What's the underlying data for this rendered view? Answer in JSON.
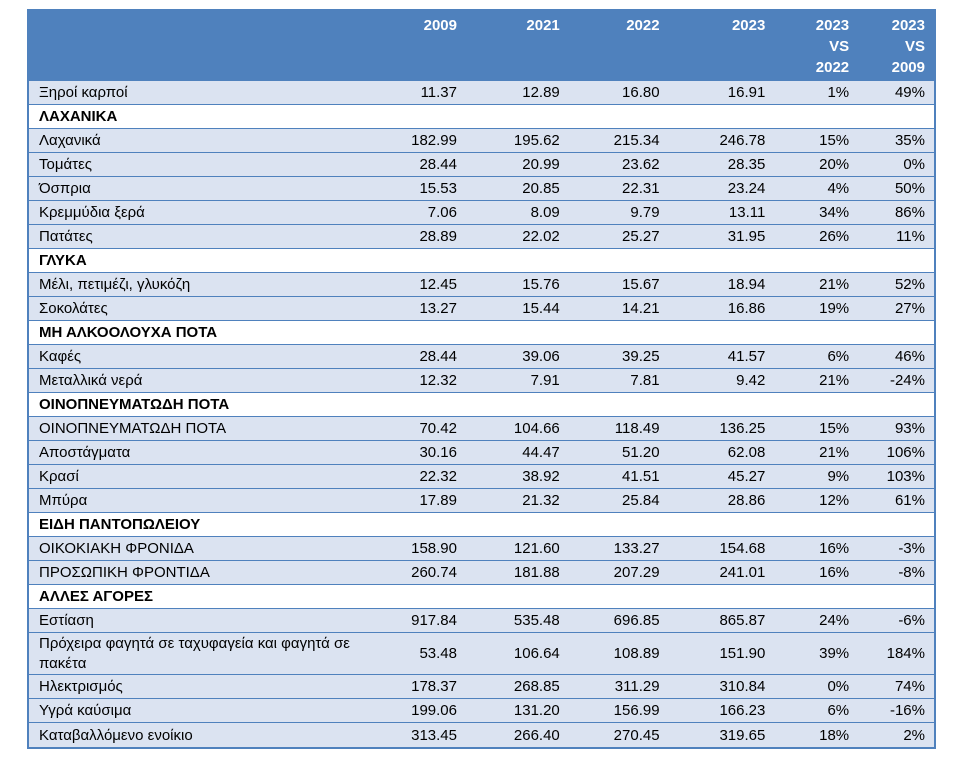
{
  "header": {
    "label": "",
    "cols": [
      "2009",
      "2021",
      "2022",
      "2023",
      "2023\nVS\n2022",
      "2023\nVS\n2009"
    ]
  },
  "rows": [
    {
      "type": "data",
      "label": "Ξηροί καρποί",
      "v": [
        "11.37",
        "12.89",
        "16.80",
        "16.91",
        "1%",
        "49%"
      ]
    },
    {
      "type": "cat",
      "label": "ΛΑΧΑΝΙΚΑ"
    },
    {
      "type": "data",
      "label": "Λαχανικά",
      "v": [
        "182.99",
        "195.62",
        "215.34",
        "246.78",
        "15%",
        "35%"
      ]
    },
    {
      "type": "data",
      "label": "Τομάτες",
      "v": [
        "28.44",
        "20.99",
        "23.62",
        "28.35",
        "20%",
        "0%"
      ]
    },
    {
      "type": "data",
      "label": "Όσπρια",
      "v": [
        "15.53",
        "20.85",
        "22.31",
        "23.24",
        "4%",
        "50%"
      ]
    },
    {
      "type": "data",
      "label": "Κρεμμύδια ξερά",
      "v": [
        "7.06",
        "8.09",
        "9.79",
        "13.11",
        "34%",
        "86%"
      ]
    },
    {
      "type": "data",
      "label": "Πατάτες",
      "v": [
        "28.89",
        "22.02",
        "25.27",
        "31.95",
        "26%",
        "11%"
      ]
    },
    {
      "type": "cat",
      "label": "ΓΛΥΚΑ"
    },
    {
      "type": "data",
      "label": "Μέλι, πετιμέζι, γλυκόζη",
      "v": [
        "12.45",
        "15.76",
        "15.67",
        "18.94",
        "21%",
        "52%"
      ]
    },
    {
      "type": "data",
      "label": "Σοκολάτες",
      "v": [
        "13.27",
        "15.44",
        "14.21",
        "16.86",
        "19%",
        "27%"
      ]
    },
    {
      "type": "cat",
      "label": "ΜΗ ΑΛΚΟΟΛΟΥΧΑ ΠΟΤΑ"
    },
    {
      "type": "data",
      "label": "Καφές",
      "v": [
        "28.44",
        "39.06",
        "39.25",
        "41.57",
        "6%",
        "46%"
      ]
    },
    {
      "type": "data",
      "label": "Μεταλλικά νερά",
      "v": [
        "12.32",
        "7.91",
        "7.81",
        "9.42",
        "21%",
        "-24%"
      ]
    },
    {
      "type": "cat",
      "label": "ΟΙΝΟΠΝΕΥΜΑΤΩΔΗ ΠΟΤΑ"
    },
    {
      "type": "data",
      "label": "ΟΙΝΟΠΝΕΥΜΑΤΩΔΗ ΠΟΤΑ",
      "v": [
        "70.42",
        "104.66",
        "118.49",
        "136.25",
        "15%",
        "93%"
      ]
    },
    {
      "type": "data",
      "label": "Αποστάγματα",
      "v": [
        "30.16",
        "44.47",
        "51.20",
        "62.08",
        "21%",
        "106%"
      ]
    },
    {
      "type": "data",
      "label": "Κρασί",
      "v": [
        "22.32",
        "38.92",
        "41.51",
        "45.27",
        "9%",
        "103%"
      ]
    },
    {
      "type": "data",
      "label": "Μπύρα",
      "v": [
        "17.89",
        "21.32",
        "25.84",
        "28.86",
        "12%",
        "61%"
      ]
    },
    {
      "type": "cat",
      "label": "ΕΙΔΗ ΠΑΝΤΟΠΩΛΕΙΟΥ"
    },
    {
      "type": "data",
      "label": "ΟΙΚΟΚΙΑΚΗ ΦΡΟΝΙΔΑ",
      "v": [
        "158.90",
        "121.60",
        "133.27",
        "154.68",
        "16%",
        "-3%"
      ]
    },
    {
      "type": "data",
      "label": "ΠΡΟΣΩΠΙΚΗ ΦΡΟΝΤΙΔΑ",
      "v": [
        "260.74",
        "181.88",
        "207.29",
        "241.01",
        "16%",
        "-8%"
      ]
    },
    {
      "type": "cat",
      "label": "ΑΛΛΕΣ ΑΓΟΡΕΣ"
    },
    {
      "type": "data",
      "label": "Εστίαση",
      "v": [
        "917.84",
        "535.48",
        "696.85",
        "865.87",
        "24%",
        "-6%"
      ]
    },
    {
      "type": "data",
      "tall": true,
      "label": "Πρόχειρα φαγητά σε ταχυφαγεία και φαγητά σε πακέτα",
      "v": [
        "53.48",
        "106.64",
        "108.89",
        "151.90",
        "39%",
        "184%"
      ]
    },
    {
      "type": "data",
      "label": "Ηλεκτρισμός",
      "v": [
        "178.37",
        "268.85",
        "311.29",
        "310.84",
        "0%",
        "74%"
      ]
    },
    {
      "type": "data",
      "label": "Υγρά καύσιμα",
      "v": [
        "199.06",
        "131.20",
        "156.99",
        "166.23",
        "6%",
        "-16%"
      ]
    },
    {
      "type": "data",
      "label": "Καταβαλλόμενο ενοίκιο",
      "v": [
        "313.45",
        "266.40",
        "270.45",
        "319.65",
        "18%",
        "2%"
      ]
    }
  ],
  "colors": {
    "header_bg": "#4f81bd",
    "row_bg": "#dbe3f1",
    "border": "#4f81bd"
  }
}
